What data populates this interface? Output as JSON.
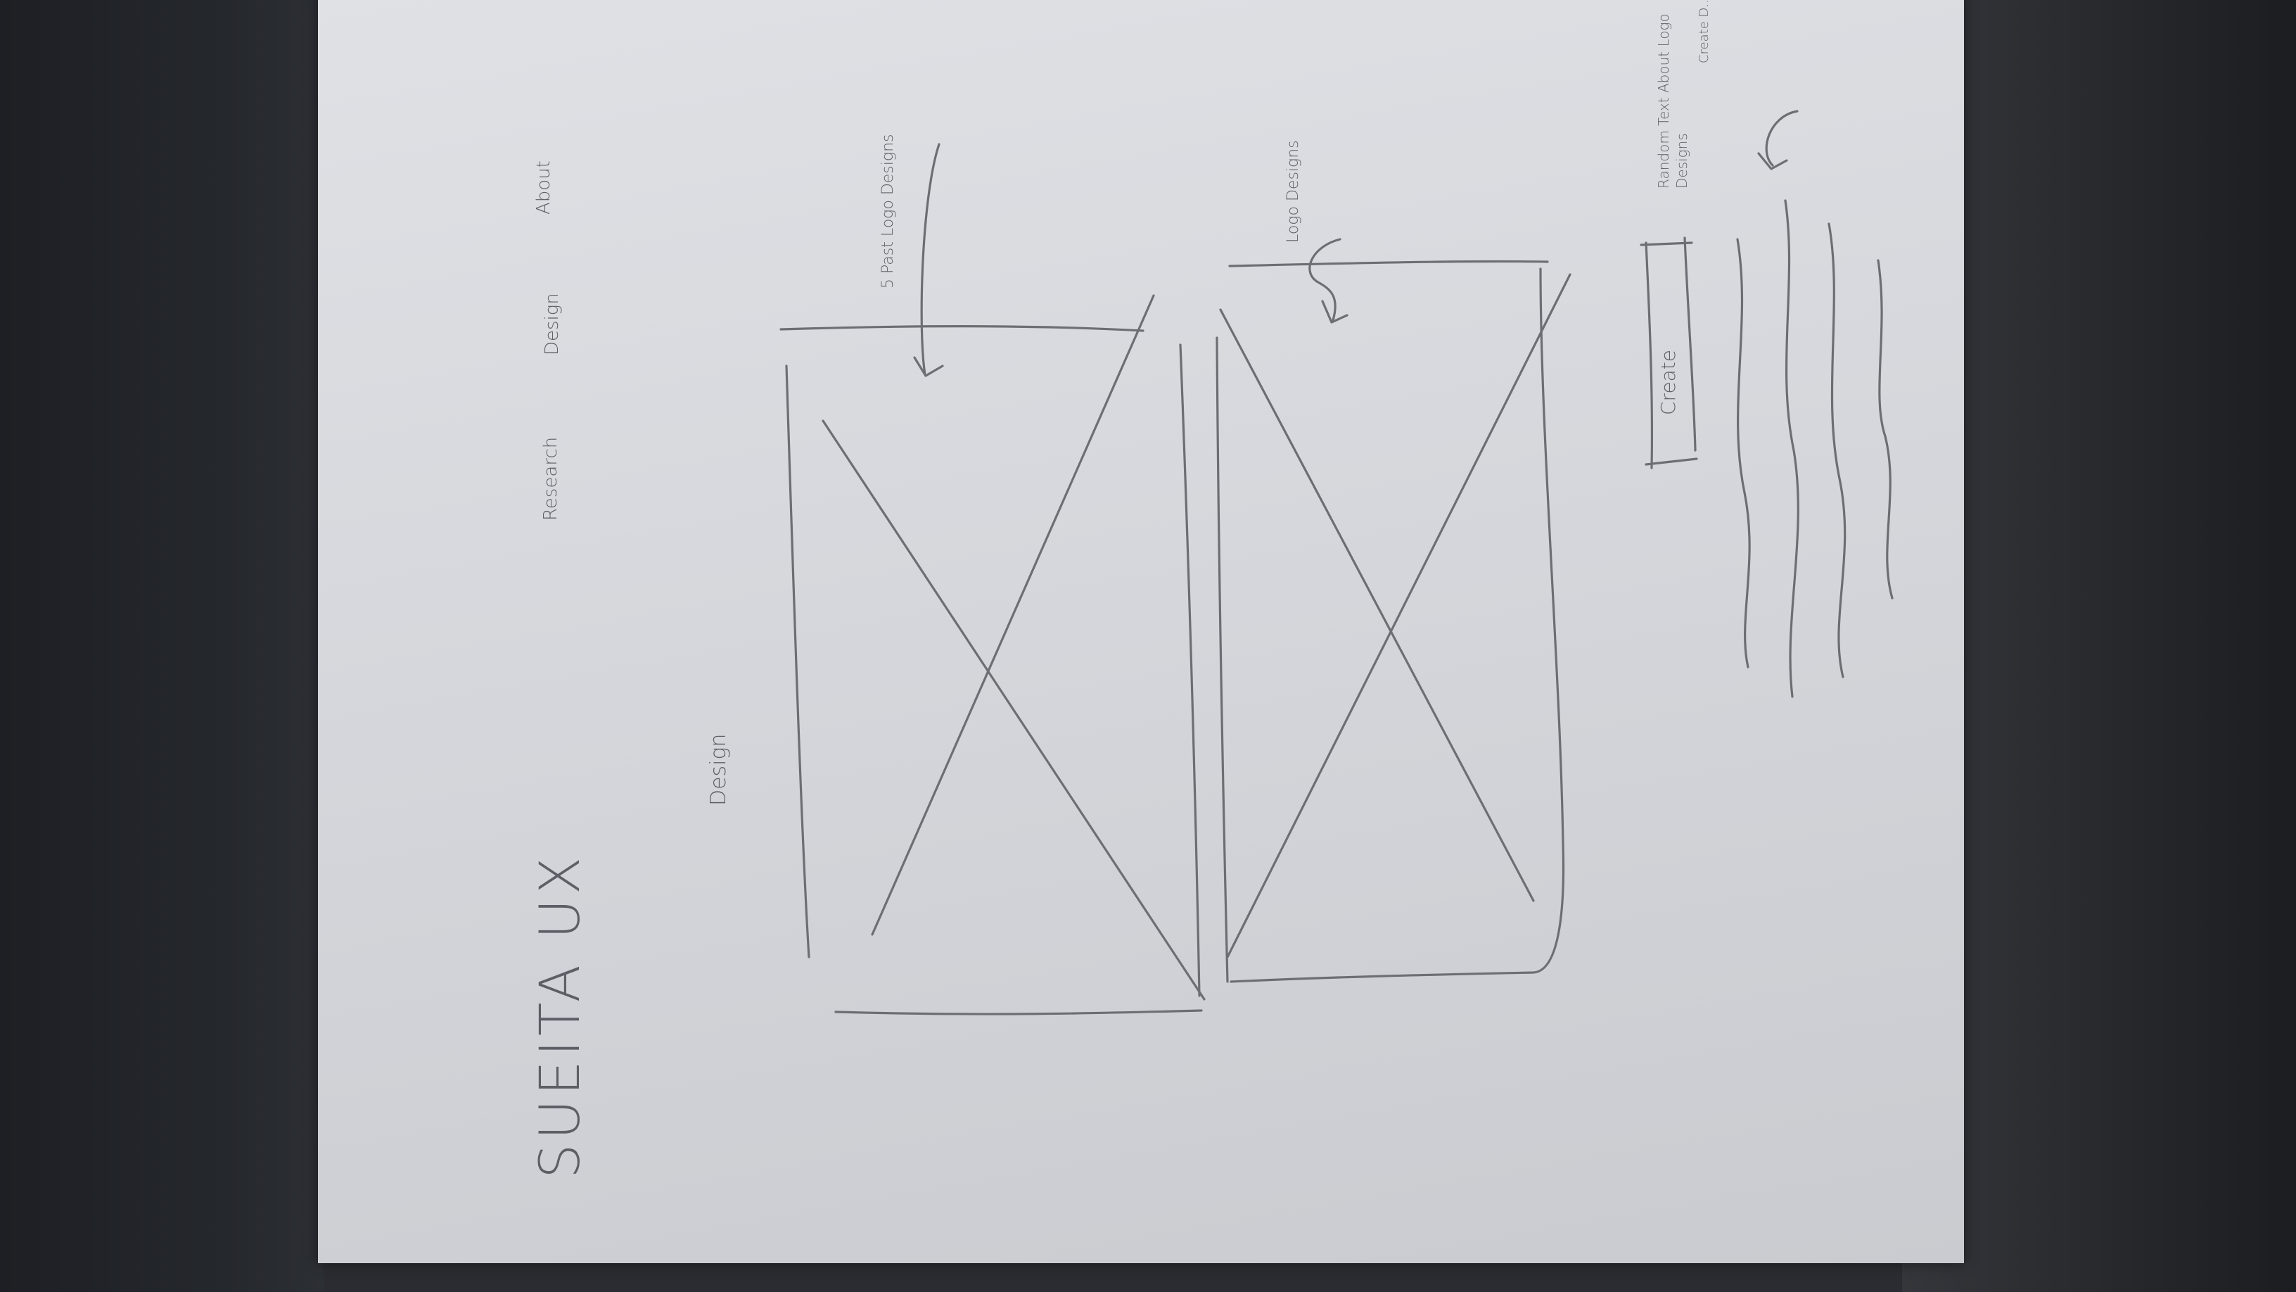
{
  "sketch": {
    "brand": "SUEITA UX",
    "nav": {
      "research": "Research",
      "design": "Design",
      "about": "About"
    },
    "section_heading": "Design",
    "annotation_top": "5 Past Logo Designs",
    "annotation_bottom": "Logo Designs",
    "button_label": "Create",
    "annotation_right": "Random Text About Logo Designs",
    "annotation_right_extra": "Create D…"
  },
  "colors": {
    "paper": "#d8dade",
    "pencil": "#6c6e74",
    "background": "#2a2c31"
  }
}
